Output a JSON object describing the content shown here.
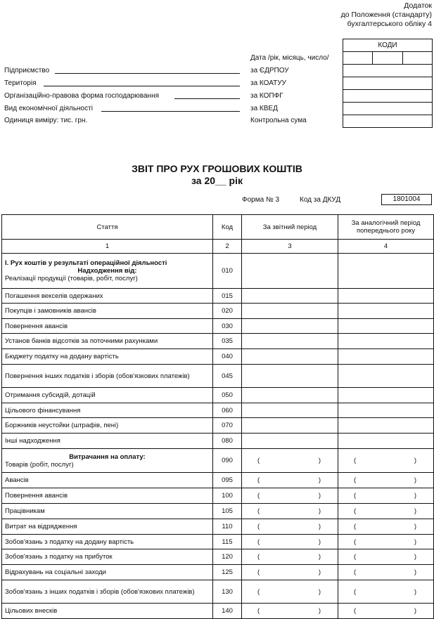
{
  "annex": [
    "Додаток",
    "до Положення (стандарту)",
    "бухгалтерського обліку 4"
  ],
  "left_fields": [
    "Підприємство",
    "Територія",
    "Організаційно-правова форма господарювання",
    "Вид економічної діяльності",
    "Одиниця виміру: тис. грн."
  ],
  "code_labels": [
    "Дата /рік, місяць, число/",
    "за ЄДРПОУ",
    "за КОАТУУ",
    "за КОПФГ",
    "за КВЕД",
    "Контрольна сума"
  ],
  "codes_header": "КОДИ",
  "title": "ЗВІТ ПРО РУХ ГРОШОВИХ КОШТІВ",
  "subtitle": "за 20__ рік",
  "form_no": "Форма № 3",
  "dkud_label": "Код за ДКУД",
  "dkud_value": "1801004",
  "table": {
    "headers": [
      "Стаття",
      "Код",
      "За звітний період",
      "За аналогічний період попереднього року"
    ],
    "index": [
      "1",
      "2",
      "3",
      "4"
    ],
    "section1": "І. Рух коштів у результаті операційної діяльності",
    "receipts": "Надходження від:",
    "expenses": "Витрачання на оплату:",
    "paren_open": "(",
    "paren_close": ")",
    "rows": [
      {
        "label": "Реалізації продукції (товарів, робіт, послуг)",
        "code": "010"
      },
      {
        "label": "Погашення векселів одержаних",
        "code": "015"
      },
      {
        "label": "Покупців і замовників авансів",
        "code": "020"
      },
      {
        "label": "Повернення авансів",
        "code": "030"
      },
      {
        "label": "Установ банків відсотків за поточними рахунками",
        "code": "035"
      },
      {
        "label": "Бюджету податку на додану вартість",
        "code": "040"
      },
      {
        "label": "Повернення інших податків і зборів (обов'язкових платежів)",
        "code": "045"
      },
      {
        "label": "Отримання субсидій, дотацій",
        "code": "050"
      },
      {
        "label": "Цільового фінансування",
        "code": "060"
      },
      {
        "label": "Боржників неустойки (штрафів, пені)",
        "code": "070"
      },
      {
        "label": "Інші надходження",
        "code": "080"
      },
      {
        "label": "Товарів (робіт, послуг)",
        "code": "090"
      },
      {
        "label": "Авансів",
        "code": "095"
      },
      {
        "label": "Повернення авансів",
        "code": "100"
      },
      {
        "label": "Працівникам",
        "code": "105"
      },
      {
        "label": "Витрат на відрядження",
        "code": "110"
      },
      {
        "label": "Зобов'язань з податку на додану вартість",
        "code": "115"
      },
      {
        "label": "Зобов'язань з податку на прибуток",
        "code": "120"
      },
      {
        "label": "Відрахувань на соціальні заходи",
        "code": "125"
      },
      {
        "label": "Зобов'язань з інших податків і зборів (обов'язкових платежів)",
        "code": "130"
      },
      {
        "label": "Цільових внесків",
        "code": "140"
      }
    ]
  }
}
